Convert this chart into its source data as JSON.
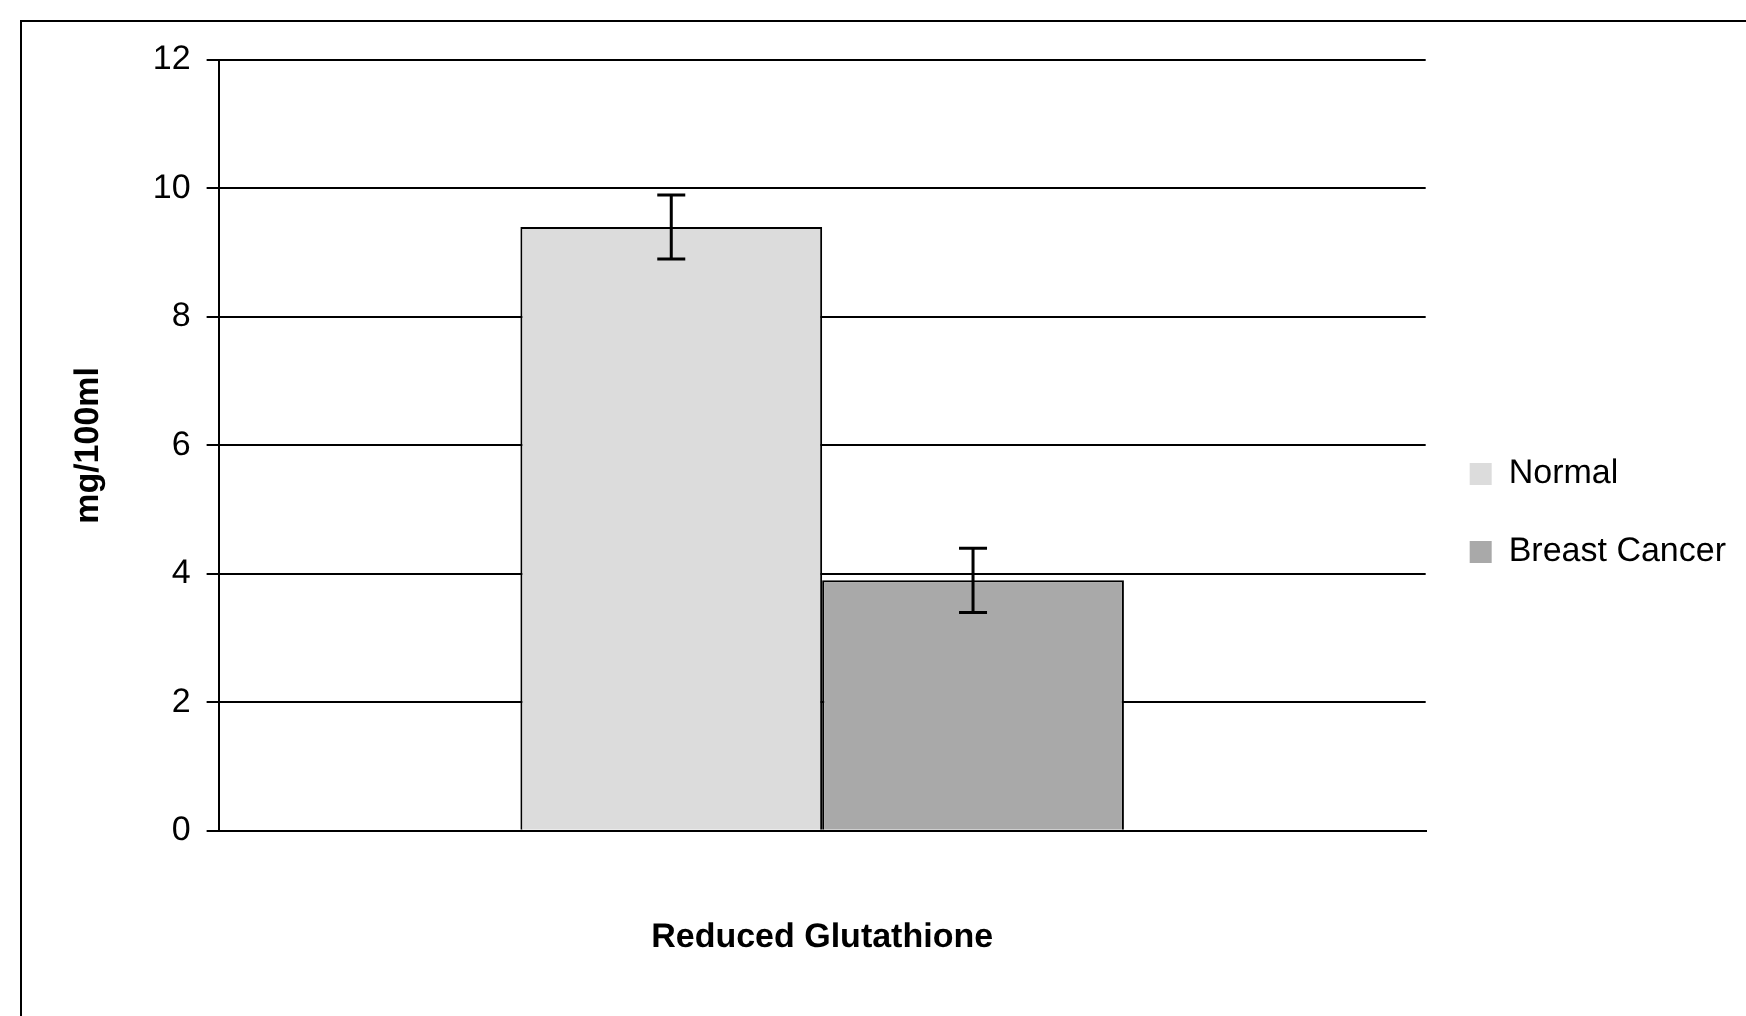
{
  "chart_data": {
    "type": "bar",
    "xlabel": "Reduced Glutathione",
    "ylabel": "mg/100ml",
    "categories": [
      null
    ],
    "series": [
      {
        "name": "Normal",
        "color": "#dcdcdc",
        "values": [
          9.4
        ],
        "errors": [
          0.5
        ]
      },
      {
        "name": "Breast Cancer",
        "color": "#a9a9a9",
        "values": [
          3.9
        ],
        "errors": [
          0.5
        ]
      }
    ],
    "ylim": [
      0,
      12
    ],
    "yticks": [
      0,
      2,
      4,
      6,
      8,
      10,
      12
    ],
    "grid": "y",
    "legend": "right"
  }
}
